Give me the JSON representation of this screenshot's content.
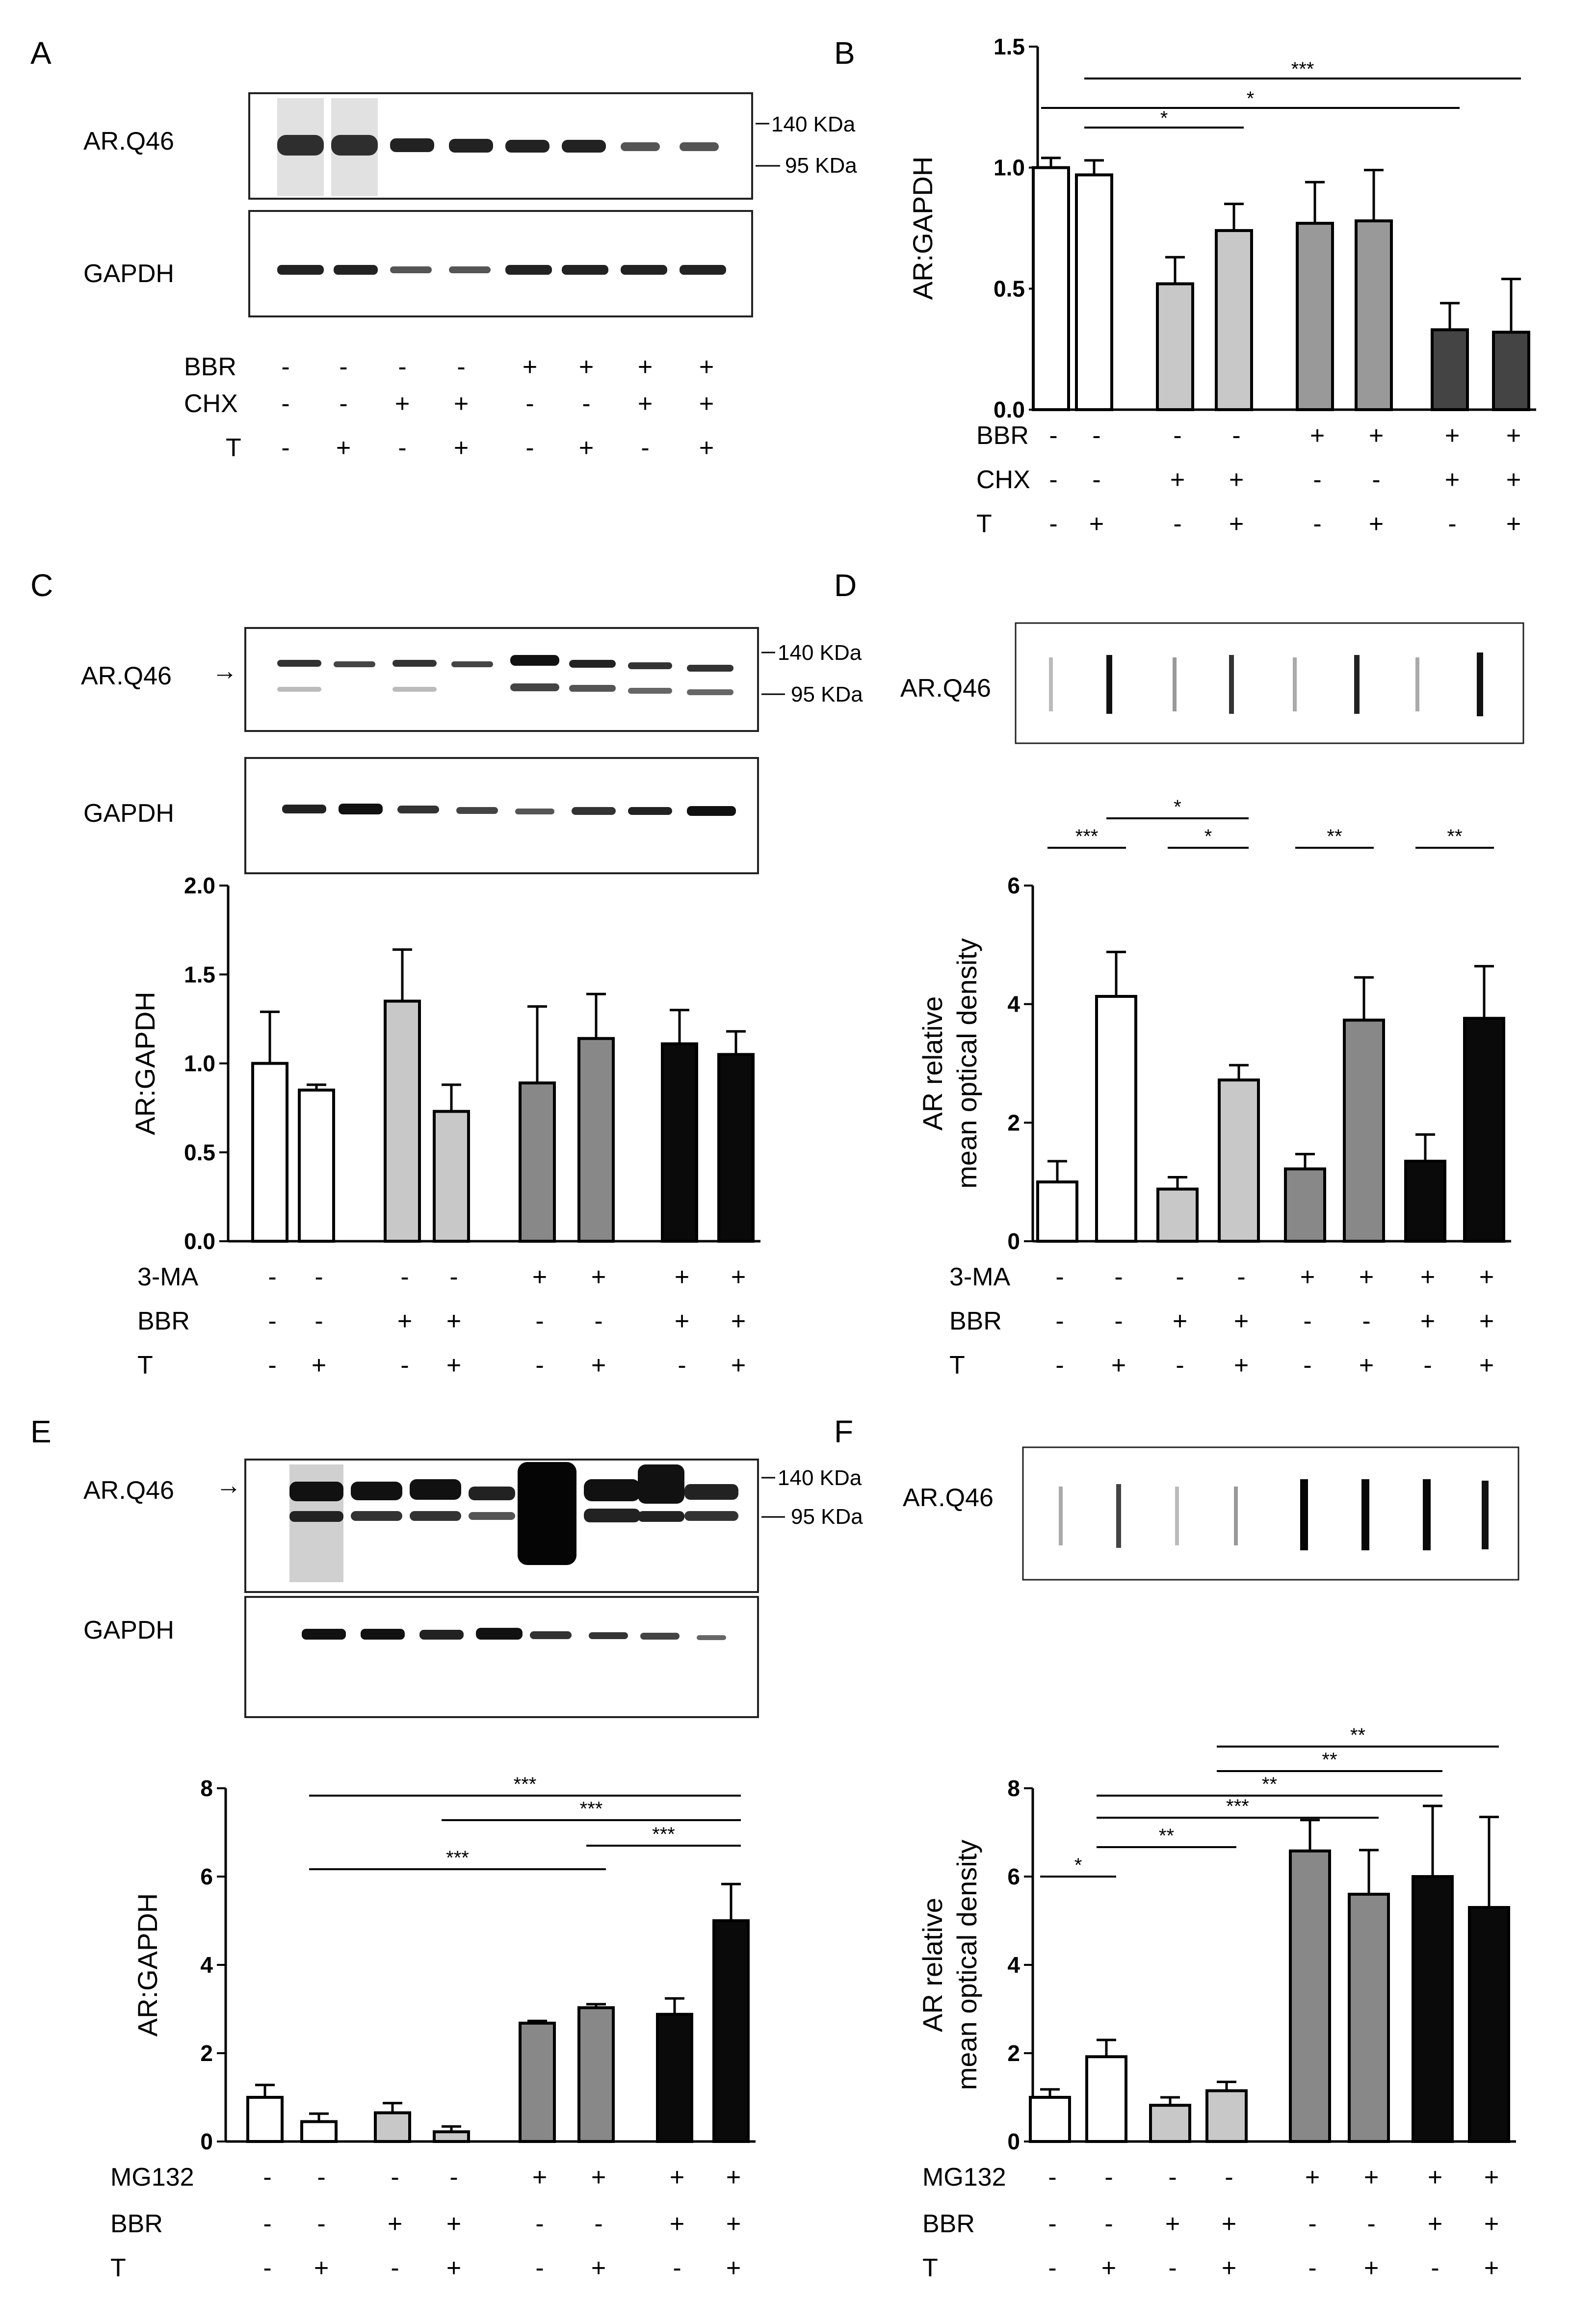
{
  "panel_letters": [
    "A",
    "B",
    "C",
    "D",
    "E",
    "F"
  ],
  "colors": {
    "white": "#ffffff",
    "light": "#c8c8c8",
    "mid": "#999999",
    "mid2": "#888888",
    "dark": "#444444",
    "black": "#0a0a0a",
    "frame": "#222222"
  },
  "chart_data": [
    {
      "panel": "B",
      "type": "bar",
      "ylabel": "AR:GAPDH",
      "ylim": [
        0,
        1.5
      ],
      "yticks": [
        "0.0",
        "0.5",
        "1.0",
        "1.5"
      ],
      "values": [
        1.0,
        0.97,
        0.52,
        0.74,
        0.77,
        0.78,
        0.33,
        0.32
      ],
      "errors": [
        0.04,
        0.06,
        0.11,
        0.11,
        0.17,
        0.21,
        0.11,
        0.22
      ],
      "fills": [
        "white",
        "white",
        "light",
        "light",
        "mid",
        "mid",
        "dark",
        "dark"
      ],
      "rows": [
        {
          "label": "BBR",
          "signs": [
            "-",
            "-",
            "-",
            "-",
            "+",
            "+",
            "+",
            "+"
          ]
        },
        {
          "label": "CHX",
          "signs": [
            "-",
            "-",
            "+",
            "+",
            "-",
            "-",
            "+",
            "+"
          ]
        },
        {
          "label": "T",
          "signs": [
            "-",
            "+",
            "-",
            "+",
            "-",
            "+",
            "-",
            "+"
          ]
        }
      ],
      "significance": [
        {
          "from": 1,
          "to": 3,
          "label": "*"
        },
        {
          "from": 0,
          "to": 6,
          "label": "*"
        },
        {
          "from": 1,
          "to": 7,
          "label": "***"
        }
      ]
    },
    {
      "panel": "C",
      "type": "bar",
      "ylabel": "AR:GAPDH",
      "ylim": [
        0,
        2.0
      ],
      "yticks": [
        "0.0",
        "0.5",
        "1.0",
        "1.5",
        "2.0"
      ],
      "values": [
        1.0,
        0.85,
        1.35,
        0.73,
        0.89,
        1.14,
        1.11,
        1.05
      ],
      "errors": [
        0.29,
        0.03,
        0.29,
        0.15,
        0.43,
        0.25,
        0.19,
        0.13
      ],
      "fills": [
        "white",
        "white",
        "light",
        "light",
        "mid2",
        "mid2",
        "black",
        "black"
      ],
      "rows": [
        {
          "label": "3-MA",
          "signs": [
            "-",
            "-",
            "-",
            "-",
            "+",
            "+",
            "+",
            "+"
          ]
        },
        {
          "label": "BBR",
          "signs": [
            "-",
            "-",
            "+",
            "+",
            "-",
            "-",
            "+",
            "+"
          ]
        },
        {
          "label": "T",
          "signs": [
            "-",
            "+",
            "-",
            "+",
            "-",
            "+",
            "-",
            "+"
          ]
        }
      ],
      "significance": []
    },
    {
      "panel": "D",
      "type": "bar",
      "ylabel": "AR relative",
      "ylabel2": "mean optical density",
      "ylim": [
        0,
        6
      ],
      "yticks": [
        "0",
        "2",
        "4",
        "6"
      ],
      "values": [
        1.0,
        4.13,
        0.88,
        2.72,
        1.22,
        3.73,
        1.35,
        3.76
      ],
      "errors": [
        0.35,
        0.75,
        0.2,
        0.25,
        0.25,
        0.72,
        0.45,
        0.88
      ],
      "fills": [
        "white",
        "white",
        "light",
        "light",
        "mid2",
        "mid2",
        "black",
        "black"
      ],
      "rows": [
        {
          "label": "3-MA",
          "signs": [
            "-",
            "-",
            "-",
            "-",
            "+",
            "+",
            "+",
            "+"
          ]
        },
        {
          "label": "BBR",
          "signs": [
            "-",
            "-",
            "+",
            "+",
            "-",
            "-",
            "+",
            "+"
          ]
        },
        {
          "label": "T",
          "signs": [
            "-",
            "+",
            "-",
            "+",
            "-",
            "+",
            "-",
            "+"
          ]
        }
      ],
      "significance": [
        {
          "from": 0,
          "to": 1,
          "label": "***"
        },
        {
          "from": 1,
          "to": 3,
          "label": "*"
        },
        {
          "from": 2,
          "to": 3,
          "label": "*"
        },
        {
          "from": 4,
          "to": 5,
          "label": "**"
        },
        {
          "from": 6,
          "to": 7,
          "label": "**"
        }
      ]
    },
    {
      "panel": "E",
      "type": "bar",
      "ylabel": "AR:GAPDH",
      "ylim": [
        0,
        8
      ],
      "yticks": [
        "0",
        "2",
        "4",
        "6",
        "8"
      ],
      "values": [
        1.0,
        0.45,
        0.65,
        0.22,
        2.68,
        3.03,
        2.88,
        5.0
      ],
      "errors": [
        0.28,
        0.18,
        0.22,
        0.12,
        0.05,
        0.08,
        0.36,
        0.83
      ],
      "fills": [
        "white",
        "white",
        "light",
        "light",
        "mid2",
        "mid2",
        "black",
        "black"
      ],
      "rows": [
        {
          "label": "MG132",
          "signs": [
            "-",
            "-",
            "-",
            "-",
            "+",
            "+",
            "+",
            "+"
          ]
        },
        {
          "label": "BBR",
          "signs": [
            "-",
            "-",
            "+",
            "+",
            "-",
            "-",
            "+",
            "+"
          ]
        },
        {
          "label": "T",
          "signs": [
            "-",
            "+",
            "-",
            "+",
            "-",
            "+",
            "-",
            "+"
          ]
        }
      ],
      "significance": [
        {
          "from": 1,
          "to": 7,
          "label": "***"
        },
        {
          "from": 3,
          "to": 7,
          "label": "***"
        },
        {
          "from": 5,
          "to": 7,
          "label": "***"
        },
        {
          "from": 1,
          "to": 5,
          "label": "***"
        }
      ]
    },
    {
      "panel": "F",
      "type": "bar",
      "ylabel": "AR relative",
      "ylabel2": "mean optical density",
      "ylim": [
        0,
        8
      ],
      "yticks": [
        "0",
        "2",
        "4",
        "6",
        "8"
      ],
      "values": [
        1.0,
        1.92,
        0.82,
        1.15,
        6.58,
        5.6,
        6.0,
        5.3
      ],
      "errors": [
        0.18,
        0.38,
        0.18,
        0.2,
        0.7,
        1.0,
        1.6,
        2.05
      ],
      "fills": [
        "white",
        "white",
        "light",
        "light",
        "mid2",
        "mid2",
        "black",
        "black"
      ],
      "rows": [
        {
          "label": "MG132",
          "signs": [
            "-",
            "-",
            "-",
            "-",
            "+",
            "+",
            "+",
            "+"
          ]
        },
        {
          "label": "BBR",
          "signs": [
            "-",
            "-",
            "+",
            "+",
            "-",
            "-",
            "+",
            "+"
          ]
        },
        {
          "label": "T",
          "signs": [
            "-",
            "+",
            "-",
            "+",
            "-",
            "+",
            "-",
            "+"
          ]
        }
      ],
      "significance": [
        {
          "from": 0,
          "to": 1,
          "label": "*"
        },
        {
          "from": 1,
          "to": 3,
          "label": "**"
        },
        {
          "from": 1,
          "to": 5,
          "label": "***"
        },
        {
          "from": 1,
          "to": 6,
          "label": "**"
        },
        {
          "from": 3,
          "to": 6,
          "label": "**"
        },
        {
          "from": 3,
          "to": 7,
          "label": "**"
        }
      ]
    }
  ],
  "blots": {
    "A": {
      "rows": [
        {
          "label": "BBR",
          "signs": [
            "-",
            "-",
            "-",
            "-",
            "+",
            "+",
            "+",
            "+"
          ]
        },
        {
          "label": "CHX",
          "signs": [
            "-",
            "-",
            "+",
            "+",
            "-",
            "-",
            "+",
            "+"
          ]
        },
        {
          "label": "T",
          "signs": [
            "-",
            "+",
            "-",
            "+",
            "-",
            "+",
            "-",
            "+"
          ]
        }
      ]
    },
    "label_ar": "AR.Q46",
    "label_gapdh": "GAPDH",
    "marker_140": "140 KDa",
    "marker_95": "95 KDa"
  }
}
